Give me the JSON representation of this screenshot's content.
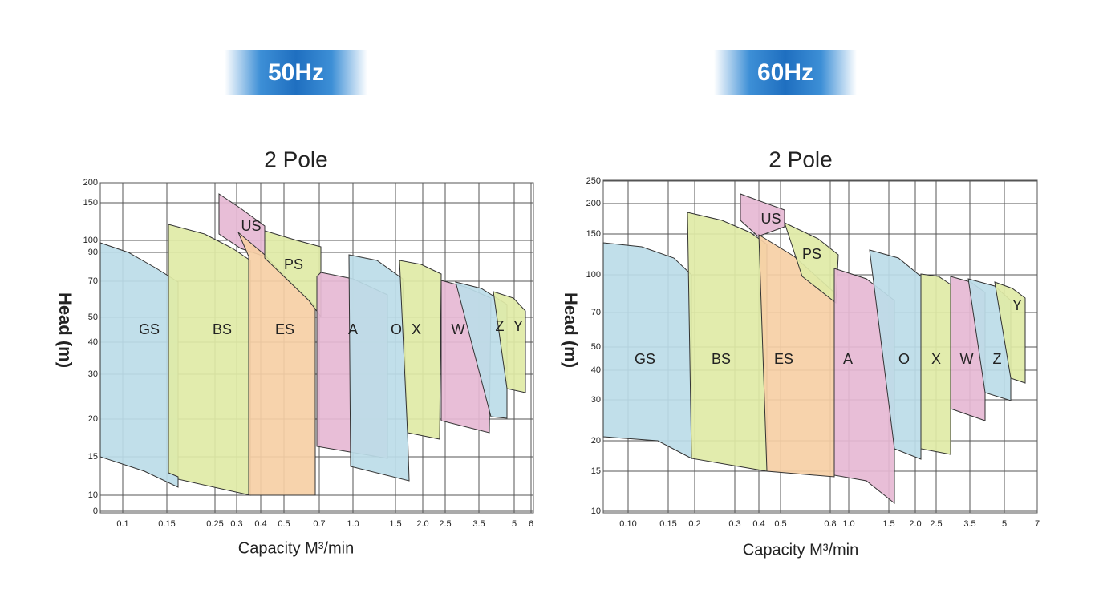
{
  "panels": [
    {
      "badge": "50Hz",
      "title": "2 Pole",
      "ylabel": "Head (m)",
      "xlabel": "Capacity M³/min",
      "xticks": [
        "0.1",
        "0.15",
        "0.25",
        "0.3",
        "0.4",
        "0.5",
        "0.7",
        "1.0",
        "1.5",
        "2.0",
        "2.5",
        "3.5",
        "5",
        "6"
      ],
      "yticks": [
        "200",
        "150",
        "100",
        "90",
        "70",
        "50",
        "40",
        "30",
        "20",
        "15",
        "10",
        "0"
      ],
      "regions": [
        "GS",
        "BS",
        "US",
        "ES",
        "PS",
        "A",
        "O",
        "X",
        "W",
        "Z",
        "Y"
      ]
    },
    {
      "badge": "60Hz",
      "title": "2 Pole",
      "ylabel": "Head (m)",
      "xlabel": "Capacity M³/min",
      "xticks": [
        "0.10",
        "0.15",
        "0.2",
        "0.3",
        "0.4",
        "0.5",
        "0.8",
        "1.0",
        "1.5",
        "2.0",
        "2.5",
        "3.5",
        "5",
        "7"
      ],
      "yticks": [
        "250",
        "200",
        "150",
        "100",
        "70",
        "50",
        "40",
        "30",
        "20",
        "15",
        "10"
      ],
      "regions": [
        "GS",
        "BS",
        "US",
        "ES",
        "PS",
        "A",
        "O",
        "X",
        "W",
        "Z",
        "Y"
      ]
    }
  ]
}
